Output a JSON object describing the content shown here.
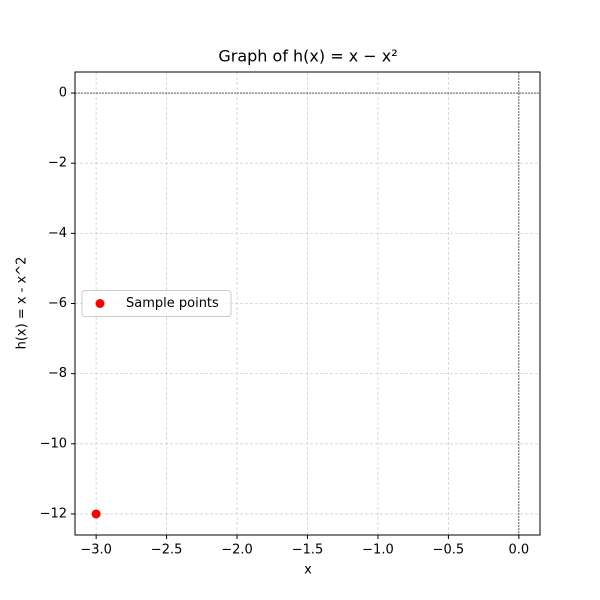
{
  "chart_data": {
    "type": "scatter",
    "title": "Graph of h(x) = x − x²",
    "x_label": "x",
    "y_label": "h(x) = x - x^2",
    "series": [
      {
        "name": "Sample points",
        "color": "#ff0000",
        "x": [
          -3
        ],
        "values": [
          -12
        ]
      }
    ],
    "xlim": [
      -3.15,
      0.15
    ],
    "ylim": [
      -12.6,
      0.6
    ],
    "xticks": [
      {
        "value": -3,
        "label": "−3.0"
      },
      {
        "value": -2.5,
        "label": "−2.5"
      },
      {
        "value": -2,
        "label": "−2.0"
      },
      {
        "value": -1.5,
        "label": "−1.5"
      },
      {
        "value": -1,
        "label": "−1.0"
      },
      {
        "value": -0.5,
        "label": "−0.5"
      },
      {
        "value": 0,
        "label": "0.0"
      }
    ],
    "yticks": [
      0,
      {
        "value": -2,
        "label": "−2"
      },
      {
        "value": -4,
        "label": "−4"
      },
      {
        "value": -6,
        "label": "−6"
      },
      {
        "value": -8,
        "label": "−8"
      },
      {
        "value": -10,
        "label": "−10"
      },
      {
        "value": -12,
        "label": "−12"
      }
    ],
    "grid": true,
    "zero_lines": true,
    "legend": "center left"
  }
}
